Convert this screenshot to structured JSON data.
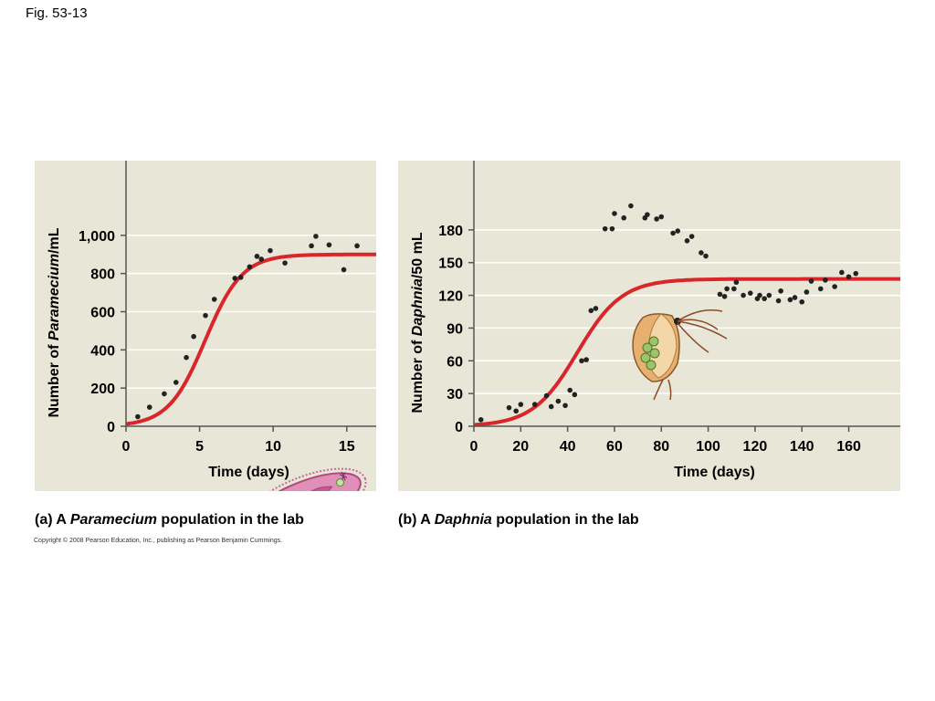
{
  "figure_label": "Fig. 53-13",
  "copyright": "Copyright © 2008 Pearson Education, Inc., publishing as Pearson Benjamin Cummings.",
  "colors": {
    "panel_bg": "#e8e6d6",
    "grid": "#ffffff",
    "curve": "#d8262a",
    "points": "#222222"
  },
  "captions": {
    "a": {
      "prefix": "(a) A ",
      "italic": "Paramecium",
      "suffix": " population in the lab"
    },
    "b": {
      "prefix": "(b) A ",
      "italic": "Daphnia",
      "suffix": " population in the lab"
    }
  },
  "illustrations": {
    "a": "paramecium-illustration",
    "b": "daphnia-illustration"
  },
  "chart_data": [
    {
      "type": "scatter",
      "xlabel": "Time (days)",
      "ylabel_parts": [
        "Number of ",
        "Paramecium",
        "/mL"
      ],
      "xlim": [
        0,
        17
      ],
      "ylim": [
        0,
        1200
      ],
      "xticks": [
        0,
        5,
        10,
        15
      ],
      "xtick_labels": [
        "0",
        "5",
        "10",
        "15"
      ],
      "yticks": [
        0,
        200,
        400,
        600,
        800,
        1000
      ],
      "ytick_labels": [
        "0",
        "200",
        "400",
        "600",
        "800",
        "1,000"
      ],
      "grid": true,
      "points": [
        [
          0.8,
          50
        ],
        [
          1.6,
          100
        ],
        [
          2.6,
          170
        ],
        [
          3.4,
          230
        ],
        [
          4.1,
          360
        ],
        [
          4.6,
          470
        ],
        [
          5.4,
          580
        ],
        [
          6.0,
          665
        ],
        [
          7.4,
          775
        ],
        [
          7.8,
          780
        ],
        [
          8.4,
          835
        ],
        [
          8.9,
          890
        ],
        [
          9.2,
          875
        ],
        [
          9.8,
          920
        ],
        [
          10.8,
          855
        ],
        [
          12.6,
          945
        ],
        [
          12.9,
          995
        ],
        [
          13.8,
          950
        ],
        [
          14.8,
          820
        ],
        [
          15.7,
          945
        ]
      ],
      "curve": {
        "model": "logistic",
        "K": 900,
        "r": 0.8,
        "N0": 12
      }
    },
    {
      "type": "scatter",
      "xlabel": "Time (days)",
      "ylabel_parts": [
        "Number of ",
        "Daphnia",
        "/50 mL"
      ],
      "xlim": [
        0,
        182
      ],
      "ylim": [
        0,
        210
      ],
      "xticks": [
        0,
        20,
        40,
        60,
        80,
        100,
        120,
        140,
        160
      ],
      "xtick_labels": [
        "0",
        "20",
        "40",
        "60",
        "80",
        "100",
        "120",
        "140",
        "160"
      ],
      "yticks": [
        0,
        30,
        60,
        90,
        120,
        150,
        180
      ],
      "ytick_labels": [
        "0",
        "30",
        "60",
        "90",
        "120",
        "150",
        "180"
      ],
      "grid": true,
      "points": [
        [
          3,
          6
        ],
        [
          15,
          17
        ],
        [
          18,
          14
        ],
        [
          20,
          20
        ],
        [
          26,
          20
        ],
        [
          31,
          28
        ],
        [
          33,
          18
        ],
        [
          36,
          23
        ],
        [
          39,
          19
        ],
        [
          41,
          33
        ],
        [
          43,
          29
        ],
        [
          46,
          60
        ],
        [
          48,
          61
        ],
        [
          50,
          106
        ],
        [
          52,
          108
        ],
        [
          56,
          181
        ],
        [
          59,
          181
        ],
        [
          60,
          195
        ],
        [
          64,
          191
        ],
        [
          67,
          202
        ],
        [
          73,
          191
        ],
        [
          74,
          194
        ],
        [
          78,
          190
        ],
        [
          80,
          192
        ],
        [
          85,
          177
        ],
        [
          87,
          179
        ],
        [
          91,
          170
        ],
        [
          93,
          174
        ],
        [
          97,
          159
        ],
        [
          99,
          156
        ],
        [
          105,
          121
        ],
        [
          107,
          119
        ],
        [
          108,
          126
        ],
        [
          111,
          126
        ],
        [
          112,
          132
        ],
        [
          115,
          120
        ],
        [
          118,
          122
        ],
        [
          121,
          117
        ],
        [
          122,
          120
        ],
        [
          124,
          117
        ],
        [
          126,
          120
        ],
        [
          130,
          115
        ],
        [
          131,
          124
        ],
        [
          135,
          116
        ],
        [
          137,
          118
        ],
        [
          140,
          114
        ],
        [
          142,
          123
        ],
        [
          144,
          133
        ],
        [
          148,
          126
        ],
        [
          150,
          134
        ],
        [
          154,
          128
        ],
        [
          157,
          141
        ],
        [
          160,
          137
        ],
        [
          163,
          140
        ]
      ],
      "curve": {
        "model": "logistic",
        "K": 135,
        "r": 0.105,
        "N0": 1.3
      }
    }
  ]
}
